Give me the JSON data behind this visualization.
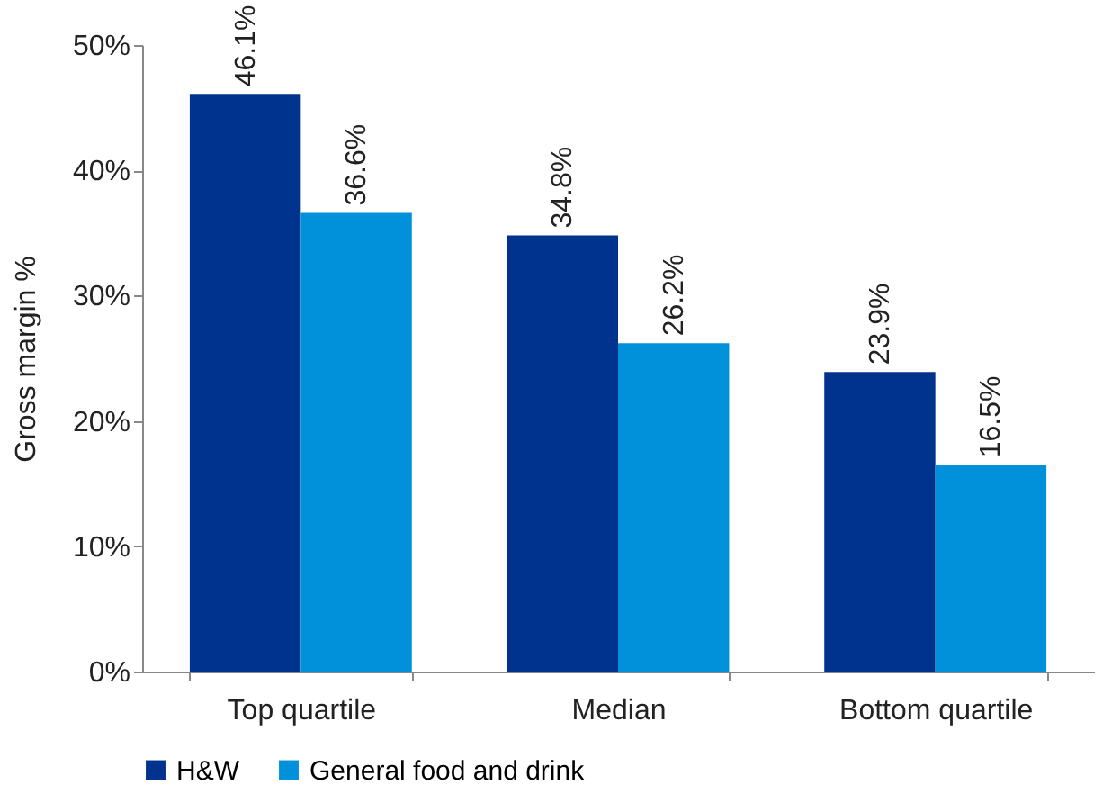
{
  "chart_data": {
    "type": "bar",
    "ylabel": "Gross margin %",
    "categories": [
      "Top quartile",
      "Median",
      "Bottom quartile"
    ],
    "series": [
      {
        "name": "H&W",
        "color": "#00338d",
        "values": [
          46.1,
          34.8,
          23.9
        ],
        "value_labels": [
          "46.1%",
          "34.8%",
          "23.9%"
        ]
      },
      {
        "name": "General food and drink",
        "color": "#0091da",
        "values": [
          36.6,
          26.2,
          16.5
        ],
        "value_labels": [
          "36.6%",
          "26.2%",
          "16.5%"
        ]
      }
    ],
    "ylim": [
      0,
      50
    ],
    "yticks": [
      {
        "value": 0,
        "label": "0%"
      },
      {
        "value": 10,
        "label": "10%"
      },
      {
        "value": 20,
        "label": "20%"
      },
      {
        "value": 30,
        "label": "30%"
      },
      {
        "value": 40,
        "label": "40%"
      },
      {
        "value": 50,
        "label": "50%"
      }
    ],
    "grid": false,
    "legend": "bottom"
  }
}
